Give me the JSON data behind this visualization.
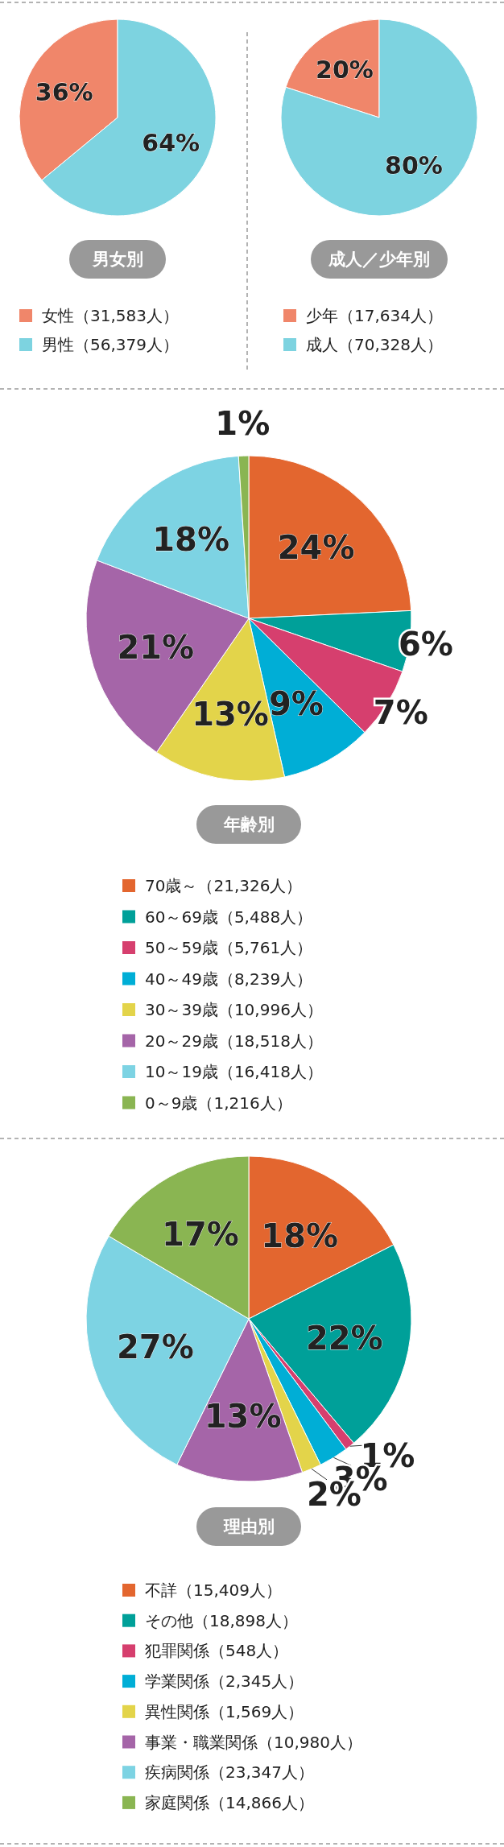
{
  "chart_data": [
    {
      "type": "pie",
      "title": "男女別",
      "legend": "bottom",
      "categories": [
        "女性（31,583人）",
        "男性（56,379人）"
      ],
      "values": [
        36,
        64
      ],
      "colors": [
        "#f0866a",
        "#7dd3e0"
      ],
      "value_labels": [
        "36%",
        "64%"
      ]
    },
    {
      "type": "pie",
      "title": "成人／少年別",
      "legend": "bottom",
      "categories": [
        "少年（17,634人）",
        "成人（70,328人）"
      ],
      "values": [
        20,
        80
      ],
      "colors": [
        "#f0866a",
        "#7dd3e0"
      ],
      "value_labels": [
        "20%",
        "80%"
      ]
    },
    {
      "type": "pie",
      "title": "年齢別",
      "legend": "bottom",
      "categories": [
        "70歳～（21,326人）",
        "60～69歳（5,488人）",
        "50～59歳（5,761人）",
        "40～49歳（8,239人）",
        "30～39歳（10,996人）",
        "20～29歳（18,518人）",
        "10～19歳（16,418人）",
        "0～9歳（1,216人）"
      ],
      "values": [
        24,
        6,
        7,
        9,
        13,
        21,
        18,
        1
      ],
      "colors": [
        "#e3662f",
        "#00a099",
        "#d63f6e",
        "#00aed6",
        "#e3d44a",
        "#a565a8",
        "#7dd3e3",
        "#8ab552"
      ],
      "value_labels": [
        "24%",
        "6%",
        "7%",
        "9%",
        "13%",
        "21%",
        "18%",
        "1%"
      ]
    },
    {
      "type": "pie",
      "title": "理由別",
      "legend": "bottom",
      "categories": [
        "不詳（15,409人）",
        "その他（18,898人）",
        "犯罪関係（548人）",
        "学業関係（2,345人）",
        "異性関係（1,569人）",
        "事業・職業関係（10,980人）",
        "疾病関係（23,347人）",
        "家庭関係（14,866人）"
      ],
      "values": [
        18,
        22,
        1,
        3,
        2,
        13,
        27,
        17
      ],
      "colors": [
        "#e3662f",
        "#00a099",
        "#d63f6e",
        "#00aed6",
        "#e3d44a",
        "#a565a8",
        "#7dd3e3",
        "#8ab552"
      ],
      "value_labels": [
        "18%",
        "22%",
        "1%",
        "3%",
        "2%",
        "13%",
        "27%",
        "17%"
      ]
    }
  ]
}
